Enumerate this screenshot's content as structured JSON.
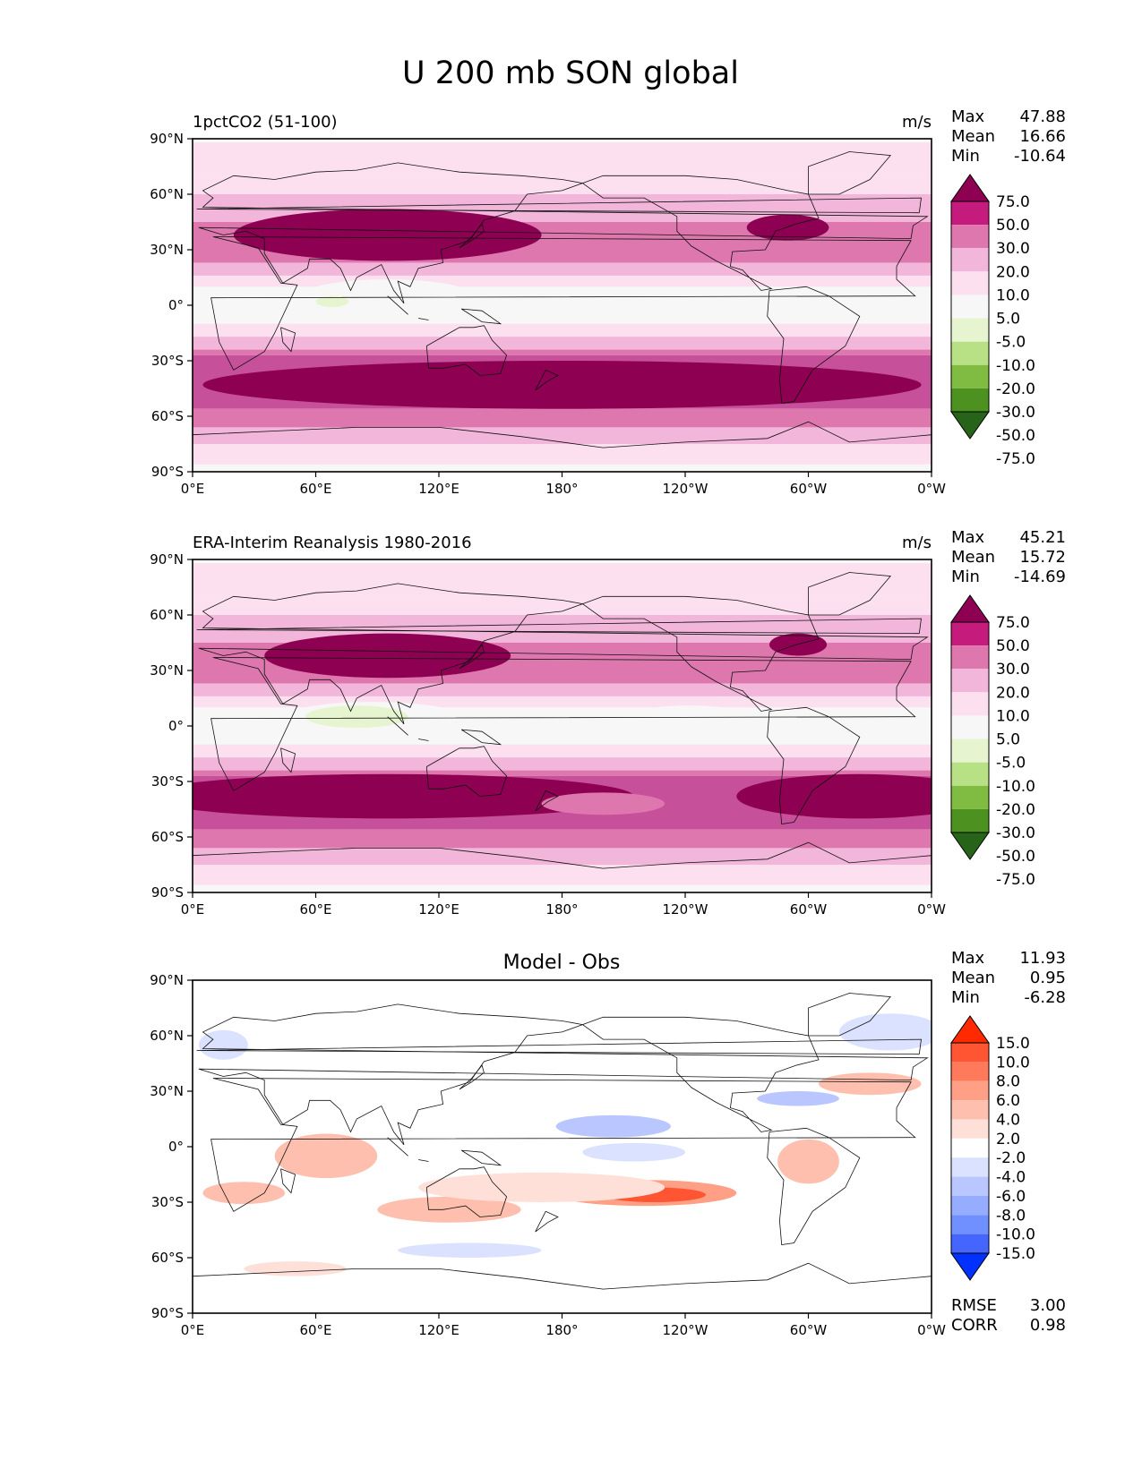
{
  "figure": {
    "title": "U 200 mb SON global"
  },
  "x_tick_labels": [
    "0°E",
    "60°E",
    "120°E",
    "180°",
    "120°W",
    "60°W",
    "0°W"
  ],
  "y_tick_labels": [
    "90°N",
    "60°N",
    "30°N",
    "0°",
    "30°S",
    "60°S",
    "90°S"
  ],
  "stat_labels": {
    "max": "Max",
    "mean": "Mean",
    "min": "Min",
    "rmse": "RMSE",
    "corr": "CORR"
  },
  "colors": {
    "field_levels": [
      "#276419",
      "#4d9221",
      "#7fbc41",
      "#b8e186",
      "#e6f5d0",
      "#f7f7f7",
      "#fde0ef",
      "#f1b6da",
      "#de77ae",
      "#c51b7d",
      "#8e0152"
    ],
    "diff_levels": [
      "#0031ff",
      "#4466ff",
      "#7090ff",
      "#95acff",
      "#b9c6ff",
      "#dbe2ff",
      "#ffffff",
      "#ffe0d8",
      "#ffbfae",
      "#ff9f86",
      "#ff7a5a",
      "#ff5533",
      "#ff2a00"
    ],
    "ocean_base": "#f7f7f7",
    "coast": "#111111"
  },
  "chart_data": [
    {
      "type": "heatmap",
      "panel": "model",
      "title_left": "1pctCO2 (51-100)",
      "title_right": "m/s",
      "title_center": "",
      "stats": {
        "max": "47.88",
        "mean": "16.66",
        "min": "-10.64"
      },
      "colorbar_levels": [
        "75.0",
        "50.0",
        "30.0",
        "20.0",
        "10.0",
        "5.0",
        "-5.0",
        "-10.0",
        "-20.0",
        "-30.0",
        "-50.0",
        "-75.0"
      ],
      "xlim": [
        0,
        360
      ],
      "ylim": [
        -90,
        90
      ],
      "features": [
        {
          "lon": 95,
          "lat": 38,
          "rx": 75,
          "ry": 14,
          "value": 40
        },
        {
          "lon": 290,
          "lat": 42,
          "rx": 20,
          "ry": 7,
          "value": 52
        },
        {
          "lon": 180,
          "lat": -43,
          "rx": 175,
          "ry": 13,
          "value": 35
        },
        {
          "lon": 95,
          "lat": 6,
          "rx": 40,
          "ry": 8,
          "value": -6
        },
        {
          "lon": 68,
          "lat": 2,
          "rx": 8,
          "ry": 3,
          "value": -12
        },
        {
          "lon": 237,
          "lat": 3,
          "rx": 14,
          "ry": 3,
          "value": -6
        }
      ]
    },
    {
      "type": "heatmap",
      "panel": "obs",
      "title_left": "ERA-Interim Reanalysis 1980-2016",
      "title_right": "m/s",
      "title_center": "",
      "stats": {
        "max": "45.21",
        "mean": "15.72",
        "min": "-14.69"
      },
      "colorbar_levels": [
        "75.0",
        "50.0",
        "30.0",
        "20.0",
        "10.0",
        "5.0",
        "-5.0",
        "-10.0",
        "-20.0",
        "-30.0",
        "-50.0",
        "-75.0"
      ],
      "xlim": [
        0,
        360
      ],
      "ylim": [
        -90,
        90
      ],
      "features": [
        {
          "lon": 95,
          "lat": 38,
          "rx": 60,
          "ry": 12,
          "value": 40
        },
        {
          "lon": 295,
          "lat": 44,
          "rx": 14,
          "ry": 6,
          "value": 52
        },
        {
          "lon": 95,
          "lat": -38,
          "rx": 120,
          "ry": 12,
          "value": 35
        },
        {
          "lon": 325,
          "lat": -38,
          "rx": 60,
          "ry": 12,
          "value": 35
        },
        {
          "lon": 200,
          "lat": -42,
          "rx": 30,
          "ry": 6,
          "value": 15
        },
        {
          "lon": 88,
          "lat": 4,
          "rx": 45,
          "ry": 9,
          "value": -10
        },
        {
          "lon": 80,
          "lat": 5,
          "rx": 25,
          "ry": 6,
          "value": -15
        },
        {
          "lon": 242,
          "lat": 7,
          "rx": 25,
          "ry": 4,
          "value": -6
        },
        {
          "lon": 10,
          "lat": 2,
          "rx": 12,
          "ry": 4,
          "value": -6
        }
      ]
    },
    {
      "type": "heatmap",
      "panel": "difference",
      "title_left": "",
      "title_right": "",
      "title_center": "Model - Obs",
      "stats": {
        "max": "11.93",
        "mean": "0.95",
        "min": "-6.28"
      },
      "colorbar_levels": [
        "15.0",
        "10.0",
        "8.0",
        "6.0",
        "4.0",
        "2.0",
        "-2.0",
        "-4.0",
        "-6.0",
        "-8.0",
        "-10.0",
        "-15.0"
      ],
      "extra_stats": {
        "rmse": "3.00",
        "corr": "0.98"
      },
      "xlim": [
        0,
        360
      ],
      "ylim": [
        -90,
        90
      ],
      "features": [
        {
          "lon": 220,
          "lat": -25,
          "rx": 45,
          "ry": 7,
          "value": 7
        },
        {
          "lon": 225,
          "lat": -26,
          "rx": 25,
          "ry": 4,
          "value": 11
        },
        {
          "lon": 65,
          "lat": -5,
          "rx": 25,
          "ry": 12,
          "value": 4
        },
        {
          "lon": 125,
          "lat": -34,
          "rx": 35,
          "ry": 7,
          "value": 5
        },
        {
          "lon": 25,
          "lat": -25,
          "rx": 20,
          "ry": 6,
          "value": 5
        },
        {
          "lon": 300,
          "lat": -8,
          "rx": 15,
          "ry": 12,
          "value": 4
        },
        {
          "lon": 330,
          "lat": 34,
          "rx": 25,
          "ry": 6,
          "value": 4
        },
        {
          "lon": 205,
          "lat": 11,
          "rx": 28,
          "ry": 6,
          "value": -5
        },
        {
          "lon": 215,
          "lat": -3,
          "rx": 25,
          "ry": 5,
          "value": -4
        },
        {
          "lon": 295,
          "lat": 26,
          "rx": 20,
          "ry": 4,
          "value": -5
        },
        {
          "lon": 340,
          "lat": 62,
          "rx": 25,
          "ry": 10,
          "value": -3
        },
        {
          "lon": 135,
          "lat": -56,
          "rx": 35,
          "ry": 4,
          "value": -3
        },
        {
          "lon": 170,
          "lat": -22,
          "rx": 60,
          "ry": 8,
          "value": 3
        },
        {
          "lon": 50,
          "lat": -66,
          "rx": 25,
          "ry": 4,
          "value": 3
        },
        {
          "lon": 15,
          "lat": 55,
          "rx": 12,
          "ry": 8,
          "value": -3
        }
      ]
    }
  ]
}
